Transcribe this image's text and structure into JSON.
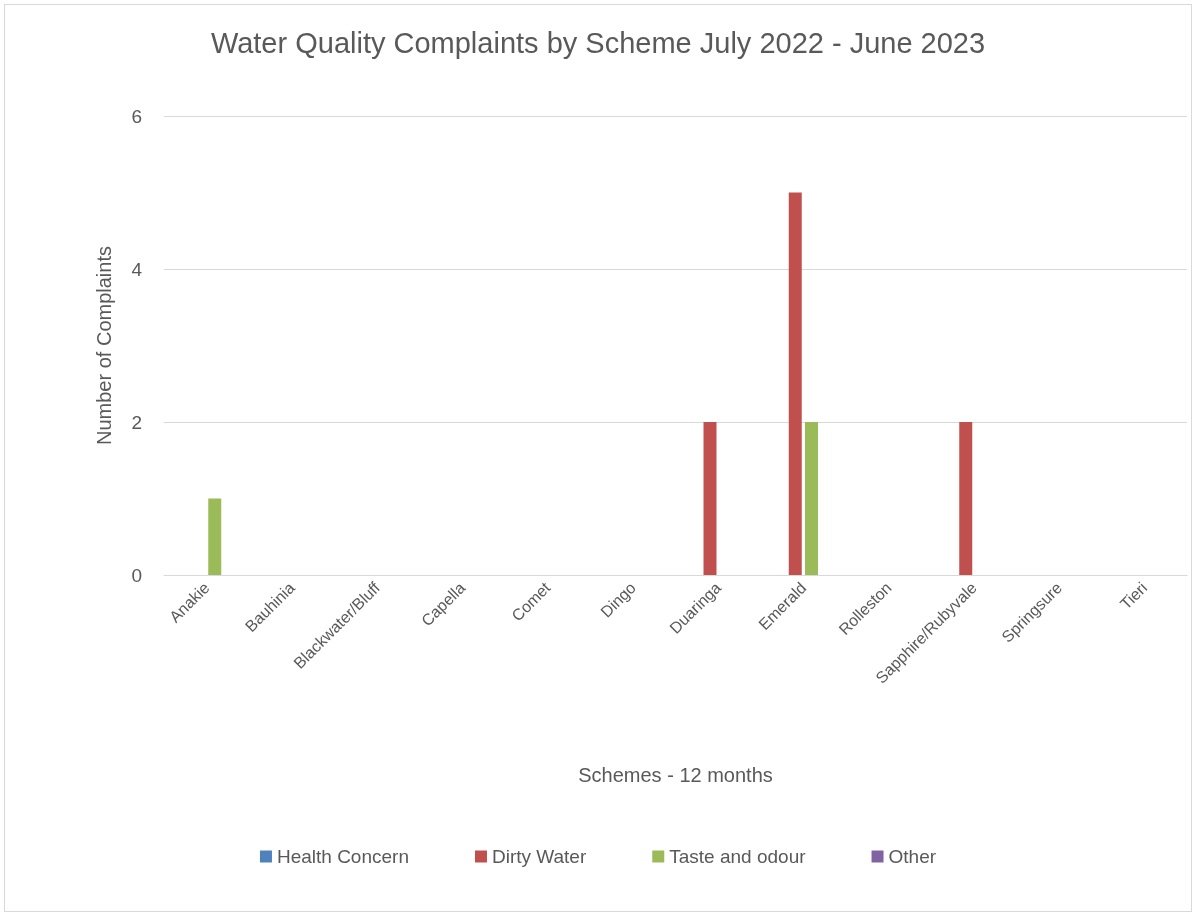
{
  "chart_data": {
    "type": "bar",
    "title": "Water Quality Complaints by Scheme July 2022 - June 2023",
    "xlabel": "Schemes - 12 months",
    "ylabel": "Number of Complaints",
    "categories": [
      "Anakie",
      "Bauhinia",
      "Blackwater/Bluff",
      "Capella",
      "Comet",
      "Dingo",
      "Duaringa",
      "Emerald",
      "Rolleston",
      "Sapphire/Rubyvale",
      "Springsure",
      "Tieri"
    ],
    "series": [
      {
        "name": "Health Concern",
        "color": "#4f81bd",
        "values": [
          0,
          0,
          0,
          0,
          0,
          0,
          0,
          0,
          0,
          0,
          0,
          0
        ]
      },
      {
        "name": "Dirty Water",
        "color": "#c0504d",
        "values": [
          0,
          0,
          0,
          0,
          0,
          0,
          2,
          5,
          0,
          2,
          0,
          0
        ]
      },
      {
        "name": "Taste and odour",
        "color": "#9bbb59",
        "values": [
          1,
          0,
          0,
          0,
          0,
          0,
          0,
          2,
          0,
          0,
          0,
          0
        ]
      },
      {
        "name": "Other",
        "color": "#8064a2",
        "values": [
          0,
          0,
          0,
          0,
          0,
          0,
          0,
          0,
          0,
          0,
          0,
          0
        ]
      }
    ],
    "ylim": [
      0,
      6
    ],
    "yticks": [
      0,
      2,
      4,
      6
    ],
    "grid": "y",
    "legend": "bottom"
  }
}
